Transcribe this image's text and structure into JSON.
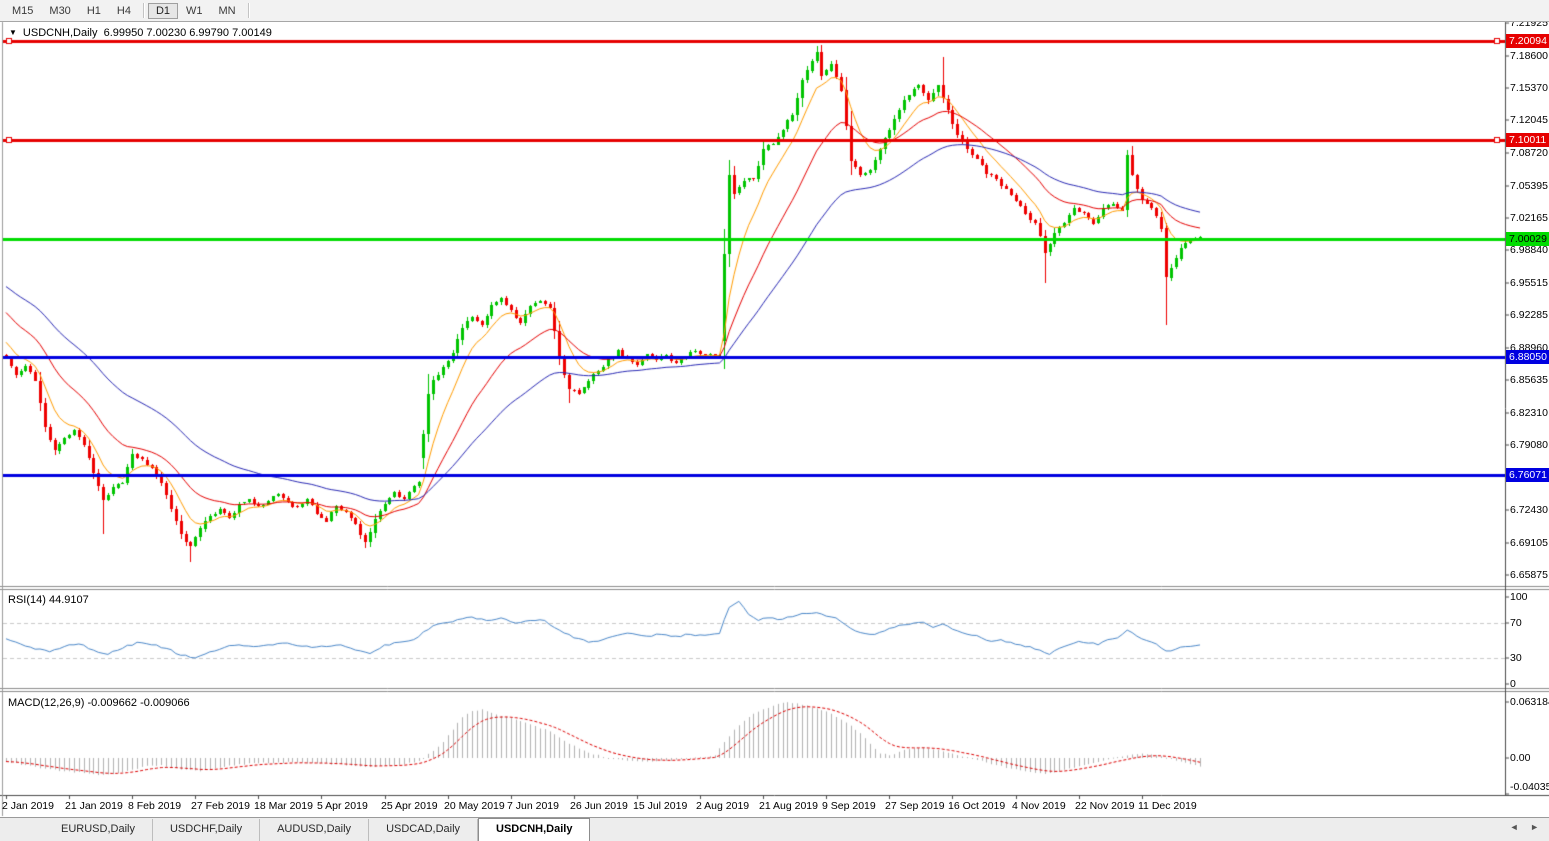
{
  "toolbar": {
    "timeframes": [
      "M15",
      "M30",
      "H1",
      "H4",
      "D1",
      "W1",
      "MN"
    ],
    "active_timeframe": "D1"
  },
  "icons": {
    "chart_menu": "▼",
    "scroll_left": "◄",
    "scroll_right": "►"
  },
  "tabs": {
    "items": [
      "EURUSD,Daily",
      "USDCHF,Daily",
      "AUDUSD,Daily",
      "USDCAD,Daily",
      "USDCNH,Daily"
    ],
    "active": "USDCNH,Daily"
  },
  "chart_data": {
    "type": "candlestick",
    "symbol": "USDCNH",
    "timeframe": "Daily",
    "window_title": "USDCNH,Daily",
    "ohlc_text": "6.99950 7.00230 6.99790 7.00149",
    "bars": 247,
    "up_color": "#00c400",
    "down_color": "#ee0000",
    "price_axis": {
      "ticks": [
        "7.21925",
        "7.18600",
        "7.15370",
        "7.12045",
        "7.08720",
        "7.05395",
        "7.02165",
        "6.98840",
        "6.95515",
        "6.92285",
        "6.88960",
        "6.85635",
        "6.82310",
        "6.79080",
        "6.75755",
        "6.72430",
        "6.69105",
        "6.65875"
      ],
      "y_range": [
        6.6476,
        7.2203
      ]
    },
    "levels": [
      {
        "price": 7.20094,
        "label": "7.20094",
        "color": "#e60000",
        "text_color": "#ffffff",
        "handles": true
      },
      {
        "price": 7.10011,
        "label": "7.10011",
        "color": "#e60000",
        "text_color": "#ffffff",
        "handles": true
      },
      {
        "price": 7.00029,
        "label": "7.00029",
        "color": "#00dc00",
        "text_color": "#000000",
        "handles": false
      },
      {
        "price": 6.8805,
        "label": "6.88050",
        "color": "#0000e0",
        "text_color": "#ffffff",
        "handles": false
      },
      {
        "price": 6.76071,
        "label": "6.76071",
        "color": "#0000e0",
        "text_color": "#ffffff",
        "handles": false
      }
    ],
    "x_labels": [
      "2 Jan 2019",
      "21 Jan 2019",
      "8 Feb 2019",
      "27 Feb 2019",
      "18 Mar 2019",
      "5 Apr 2019",
      "25 Apr 2019",
      "20 May 2019",
      "7 Jun 2019",
      "26 Jun 2019",
      "15 Jul 2019",
      "2 Aug 2019",
      "21 Aug 2019",
      "9 Sep 2019",
      "27 Sep 2019",
      "16 Oct 2019",
      "4 Nov 2019",
      "22 Nov 2019",
      "11 Dec 2019"
    ],
    "label_every_bars": 13,
    "moving_averages": [
      {
        "period": 8,
        "color": "#ff9c00",
        "seed": 6.9
      },
      {
        "period": 21,
        "color": "#e60000",
        "seed": 6.93
      },
      {
        "period": 45,
        "color": "#2828b4",
        "seed": 6.955
      }
    ],
    "close_anchors": [
      [
        0,
        6.878
      ],
      [
        2,
        6.862
      ],
      [
        4,
        6.871
      ],
      [
        6,
        6.856
      ],
      [
        8,
        6.809
      ],
      [
        10,
        6.785
      ],
      [
        12,
        6.798
      ],
      [
        14,
        6.806
      ],
      [
        16,
        6.79
      ],
      [
        18,
        6.762
      ],
      [
        20,
        6.735
      ],
      [
        22,
        6.748
      ],
      [
        24,
        6.752
      ],
      [
        26,
        6.782
      ],
      [
        28,
        6.776
      ],
      [
        30,
        6.768
      ],
      [
        32,
        6.752
      ],
      [
        34,
        6.726
      ],
      [
        36,
        6.7
      ],
      [
        38,
        6.688
      ],
      [
        40,
        6.706
      ],
      [
        42,
        6.719
      ],
      [
        44,
        6.726
      ],
      [
        46,
        6.717
      ],
      [
        48,
        6.731
      ],
      [
        50,
        6.736
      ],
      [
        52,
        6.729
      ],
      [
        54,
        6.734
      ],
      [
        56,
        6.741
      ],
      [
        58,
        6.733
      ],
      [
        60,
        6.728
      ],
      [
        62,
        6.736
      ],
      [
        64,
        6.721
      ],
      [
        66,
        6.713
      ],
      [
        68,
        6.729
      ],
      [
        70,
        6.723
      ],
      [
        72,
        6.711
      ],
      [
        74,
        6.692
      ],
      [
        76,
        6.716
      ],
      [
        78,
        6.731
      ],
      [
        80,
        6.743
      ],
      [
        82,
        6.736
      ],
      [
        84,
        6.749
      ],
      [
        85,
        6.753
      ],
      [
        86,
        6.802
      ],
      [
        87,
        6.843
      ],
      [
        88,
        6.857
      ],
      [
        90,
        6.87
      ],
      [
        92,
        6.884
      ],
      [
        94,
        6.91
      ],
      [
        96,
        6.921
      ],
      [
        98,
        6.913
      ],
      [
        100,
        6.933
      ],
      [
        102,
        6.94
      ],
      [
        104,
        6.928
      ],
      [
        106,
        6.915
      ],
      [
        108,
        6.932
      ],
      [
        110,
        6.937
      ],
      [
        112,
        6.93
      ],
      [
        114,
        6.88
      ],
      [
        116,
        6.847
      ],
      [
        118,
        6.843
      ],
      [
        120,
        6.856
      ],
      [
        122,
        6.866
      ],
      [
        124,
        6.878
      ],
      [
        126,
        6.887
      ],
      [
        128,
        6.88
      ],
      [
        130,
        6.872
      ],
      [
        132,
        6.883
      ],
      [
        134,
        6.877
      ],
      [
        136,
        6.882
      ],
      [
        138,
        6.874
      ],
      [
        140,
        6.88
      ],
      [
        142,
        6.886
      ],
      [
        144,
        6.882
      ],
      [
        147,
        6.882
      ],
      [
        148,
        6.985
      ],
      [
        149,
        7.065
      ],
      [
        150,
        7.046
      ],
      [
        152,
        7.059
      ],
      [
        154,
        7.061
      ],
      [
        156,
        7.091
      ],
      [
        158,
        7.096
      ],
      [
        160,
        7.111
      ],
      [
        162,
        7.126
      ],
      [
        164,
        7.161
      ],
      [
        166,
        7.181
      ],
      [
        167,
        7.19
      ],
      [
        168,
        7.166
      ],
      [
        170,
        7.178
      ],
      [
        172,
        7.151
      ],
      [
        174,
        7.079
      ],
      [
        176,
        7.065
      ],
      [
        178,
        7.07
      ],
      [
        180,
        7.091
      ],
      [
        182,
        7.111
      ],
      [
        184,
        7.131
      ],
      [
        186,
        7.146
      ],
      [
        188,
        7.156
      ],
      [
        190,
        7.141
      ],
      [
        192,
        7.156
      ],
      [
        194,
        7.131
      ],
      [
        196,
        7.106
      ],
      [
        198,
        7.091
      ],
      [
        200,
        7.081
      ],
      [
        202,
        7.066
      ],
      [
        204,
        7.061
      ],
      [
        206,
        7.051
      ],
      [
        208,
        7.039
      ],
      [
        210,
        7.026
      ],
      [
        212,
        7.016
      ],
      [
        214,
        6.986
      ],
      [
        216,
        7.006
      ],
      [
        218,
        7.016
      ],
      [
        220,
        7.031
      ],
      [
        222,
        7.026
      ],
      [
        224,
        7.016
      ],
      [
        226,
        7.031
      ],
      [
        228,
        7.036
      ],
      [
        230,
        7.029
      ],
      [
        231,
        7.085
      ],
      [
        232,
        7.065
      ],
      [
        234,
        7.04
      ],
      [
        236,
        7.031
      ],
      [
        238,
        7.011
      ],
      [
        239,
        6.961
      ],
      [
        240,
        6.971
      ],
      [
        242,
        6.991
      ],
      [
        244,
        6.999
      ],
      [
        245,
        7.0
      ],
      [
        246,
        7.0015
      ]
    ],
    "gap_opens": {
      "86": 6.778,
      "148": 6.897
    },
    "high_overrides": {
      "148": 7.01,
      "149": 7.08,
      "167": 7.196,
      "193": 7.185,
      "231": 7.09
    },
    "low_overrides": {
      "20": 6.7,
      "38": 6.672,
      "74": 6.687,
      "116": 6.833,
      "214": 6.956,
      "239": 6.9127
    },
    "rsi": {
      "label": "RSI(14) 44.9107",
      "color": "#4a87c9",
      "level_lines": [
        70,
        30
      ],
      "axis_ticks": [
        100,
        70,
        30,
        0
      ],
      "range": [
        0,
        100
      ],
      "anchors": [
        [
          0,
          52
        ],
        [
          3,
          46
        ],
        [
          6,
          40
        ],
        [
          9,
          37
        ],
        [
          12,
          43
        ],
        [
          15,
          46
        ],
        [
          18,
          39
        ],
        [
          21,
          34
        ],
        [
          24,
          41
        ],
        [
          27,
          48
        ],
        [
          30,
          45
        ],
        [
          33,
          41
        ],
        [
          36,
          33
        ],
        [
          39,
          30
        ],
        [
          42,
          37
        ],
        [
          45,
          42
        ],
        [
          48,
          45
        ],
        [
          51,
          43
        ],
        [
          54,
          45
        ],
        [
          57,
          47
        ],
        [
          60,
          44
        ],
        [
          63,
          42
        ],
        [
          66,
          43
        ],
        [
          69,
          45
        ],
        [
          72,
          39
        ],
        [
          75,
          35
        ],
        [
          78,
          45
        ],
        [
          81,
          48
        ],
        [
          84,
          51
        ],
        [
          86,
          60
        ],
        [
          88,
          67
        ],
        [
          90,
          70
        ],
        [
          93,
          74
        ],
        [
          96,
          77
        ],
        [
          99,
          73
        ],
        [
          102,
          76
        ],
        [
          105,
          70
        ],
        [
          108,
          73
        ],
        [
          111,
          73
        ],
        [
          114,
          62
        ],
        [
          117,
          53
        ],
        [
          120,
          48
        ],
        [
          123,
          51
        ],
        [
          126,
          56
        ],
        [
          129,
          58
        ],
        [
          132,
          55
        ],
        [
          135,
          57
        ],
        [
          138,
          55
        ],
        [
          141,
          57
        ],
        [
          144,
          56
        ],
        [
          147,
          58
        ],
        [
          149,
          88
        ],
        [
          151,
          95
        ],
        [
          153,
          80
        ],
        [
          155,
          73
        ],
        [
          157,
          76
        ],
        [
          159,
          74
        ],
        [
          161,
          77
        ],
        [
          163,
          79
        ],
        [
          165,
          81
        ],
        [
          167,
          82
        ],
        [
          169,
          78
        ],
        [
          171,
          76
        ],
        [
          173,
          68
        ],
        [
          175,
          61
        ],
        [
          177,
          58
        ],
        [
          179,
          57
        ],
        [
          181,
          61
        ],
        [
          183,
          65
        ],
        [
          185,
          68
        ],
        [
          187,
          70
        ],
        [
          189,
          71
        ],
        [
          191,
          65
        ],
        [
          193,
          69
        ],
        [
          195,
          63
        ],
        [
          197,
          59
        ],
        [
          199,
          56
        ],
        [
          201,
          53
        ],
        [
          203,
          49
        ],
        [
          205,
          51
        ],
        [
          207,
          48
        ],
        [
          209,
          45
        ],
        [
          211,
          43
        ],
        [
          213,
          39
        ],
        [
          215,
          34
        ],
        [
          217,
          41
        ],
        [
          219,
          45
        ],
        [
          221,
          49
        ],
        [
          223,
          47
        ],
        [
          225,
          45
        ],
        [
          227,
          51
        ],
        [
          229,
          53
        ],
        [
          231,
          62
        ],
        [
          233,
          55
        ],
        [
          235,
          50
        ],
        [
          237,
          46
        ],
        [
          239,
          38
        ],
        [
          241,
          40
        ],
        [
          243,
          43
        ],
        [
          245,
          44
        ],
        [
          246,
          44.9
        ]
      ]
    },
    "macd": {
      "label": "MACD(12,26,9) -0.009662 -0.009066",
      "hist_color": "#b2b2b2",
      "signal_color": "#dd0000",
      "axis_ticks": [
        0.063184,
        0.0,
        -0.040355
      ],
      "axis_tick_labels": [
        "0.063184",
        "0.00",
        "-0.040355"
      ],
      "anchors": [
        [
          0,
          -0.004
        ],
        [
          4,
          -0.008
        ],
        [
          8,
          -0.012
        ],
        [
          12,
          -0.015
        ],
        [
          16,
          -0.017
        ],
        [
          20,
          -0.019
        ],
        [
          24,
          -0.016
        ],
        [
          28,
          -0.01
        ],
        [
          32,
          -0.008
        ],
        [
          36,
          -0.013
        ],
        [
          40,
          -0.015
        ],
        [
          44,
          -0.011
        ],
        [
          48,
          -0.007
        ],
        [
          52,
          -0.006
        ],
        [
          56,
          -0.005
        ],
        [
          60,
          -0.005
        ],
        [
          64,
          -0.006
        ],
        [
          68,
          -0.007
        ],
        [
          72,
          -0.009
        ],
        [
          76,
          -0.01
        ],
        [
          80,
          -0.008
        ],
        [
          84,
          -0.005
        ],
        [
          86,
          0.0
        ],
        [
          88,
          0.008
        ],
        [
          90,
          0.018
        ],
        [
          92,
          0.032
        ],
        [
          94,
          0.046
        ],
        [
          96,
          0.053
        ],
        [
          98,
          0.055
        ],
        [
          100,
          0.051
        ],
        [
          104,
          0.045
        ],
        [
          108,
          0.038
        ],
        [
          112,
          0.03
        ],
        [
          116,
          0.016
        ],
        [
          120,
          0.006
        ],
        [
          124,
          0.0
        ],
        [
          128,
          -0.003
        ],
        [
          132,
          -0.004
        ],
        [
          136,
          -0.003
        ],
        [
          140,
          -0.001
        ],
        [
          144,
          0.001
        ],
        [
          146,
          0.003
        ],
        [
          148,
          0.018
        ],
        [
          150,
          0.032
        ],
        [
          152,
          0.042
        ],
        [
          154,
          0.05
        ],
        [
          156,
          0.055
        ],
        [
          158,
          0.059
        ],
        [
          161,
          0.063
        ],
        [
          164,
          0.06
        ],
        [
          167,
          0.056
        ],
        [
          170,
          0.05
        ],
        [
          173,
          0.04
        ],
        [
          176,
          0.028
        ],
        [
          178,
          0.016
        ],
        [
          180,
          0.005
        ],
        [
          182,
          0.003
        ],
        [
          184,
          0.007
        ],
        [
          186,
          0.01
        ],
        [
          189,
          0.012
        ],
        [
          192,
          0.009
        ],
        [
          195,
          0.005
        ],
        [
          198,
          0.001
        ],
        [
          201,
          -0.003
        ],
        [
          204,
          -0.008
        ],
        [
          207,
          -0.012
        ],
        [
          210,
          -0.015
        ],
        [
          214,
          -0.018
        ],
        [
          217,
          -0.015
        ],
        [
          220,
          -0.011
        ],
        [
          223,
          -0.007
        ],
        [
          226,
          -0.003
        ],
        [
          229,
          0.001
        ],
        [
          232,
          0.004
        ],
        [
          234,
          0.005
        ],
        [
          236,
          0.004
        ],
        [
          238,
          0.002
        ],
        [
          240,
          -0.001
        ],
        [
          242,
          -0.004
        ],
        [
          244,
          -0.007
        ],
        [
          246,
          -0.0097
        ]
      ]
    }
  }
}
